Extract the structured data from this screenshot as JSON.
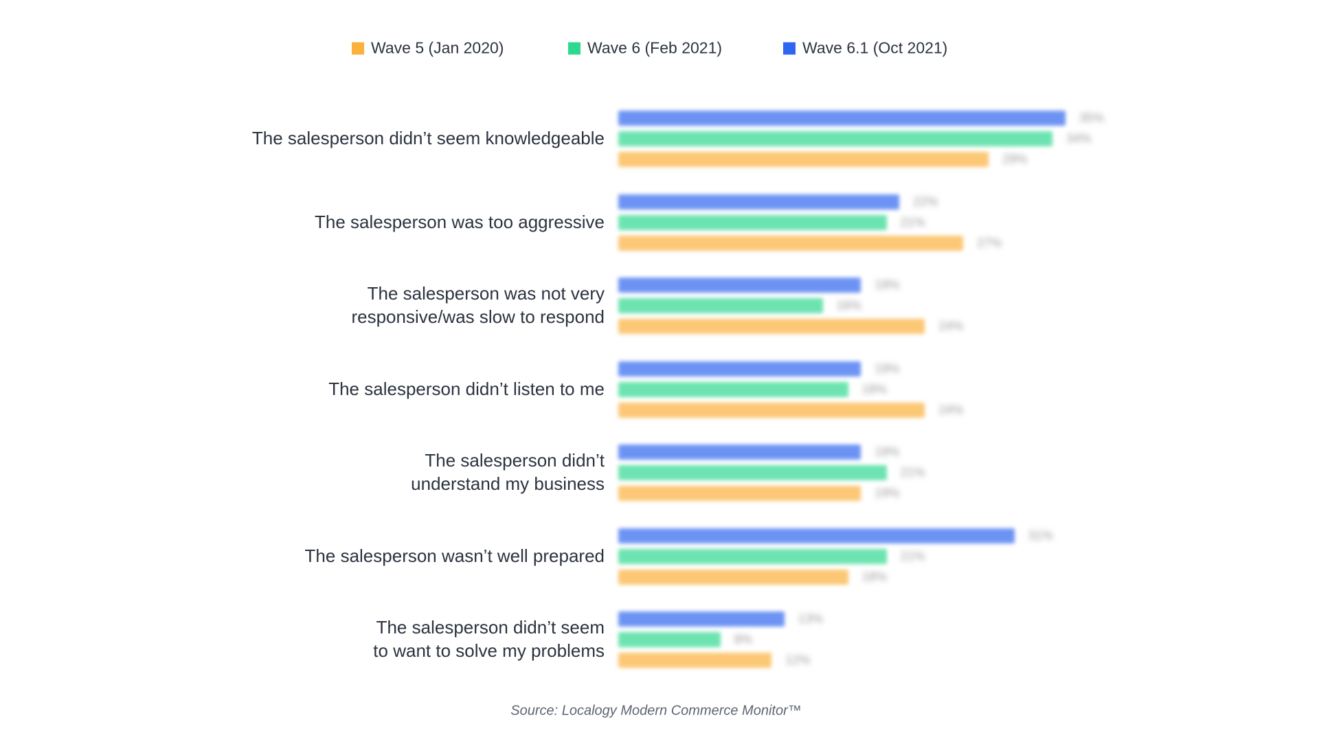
{
  "chart_data": {
    "type": "bar",
    "orientation": "horizontal",
    "categories": [
      "The salesperson didn’t seem knowledgeable",
      "The salesperson was too aggressive",
      "The salesperson was not very responsive/was slow to respond",
      "The salesperson didn’t listen to me",
      "The salesperson didn’t understand my business",
      "The salesperson wasn’t well prepared",
      "The salesperson didn’t seem to want to solve my problems"
    ],
    "series": [
      {
        "name": "Wave 5 (Jan 2020)",
        "color": "#fbb13c",
        "values": [
          29,
          27,
          24,
          24,
          19,
          18,
          12
        ],
        "value_labels": [
          "29%",
          "27%",
          "24%",
          "24%",
          "19%",
          "18%",
          "12%"
        ]
      },
      {
        "name": "Wave 6 (Feb 2021)",
        "color": "#2fd88f",
        "values": [
          34,
          21,
          16,
          18,
          21,
          21,
          8
        ],
        "value_labels": [
          "34%",
          "21%",
          "16%",
          "18%",
          "21%",
          "21%",
          "8%"
        ]
      },
      {
        "name": "Wave 6.1 (Oct 2021)",
        "color": "#2f66f0",
        "values": [
          35,
          22,
          19,
          19,
          19,
          31,
          13
        ],
        "value_labels": [
          "35%",
          "22%",
          "19%",
          "19%",
          "19%",
          "31%",
          "13%"
        ]
      }
    ],
    "xlim": [
      0,
      50
    ],
    "legend": "top",
    "source": "Source: Localogy Modern Commerce Monitor™"
  }
}
